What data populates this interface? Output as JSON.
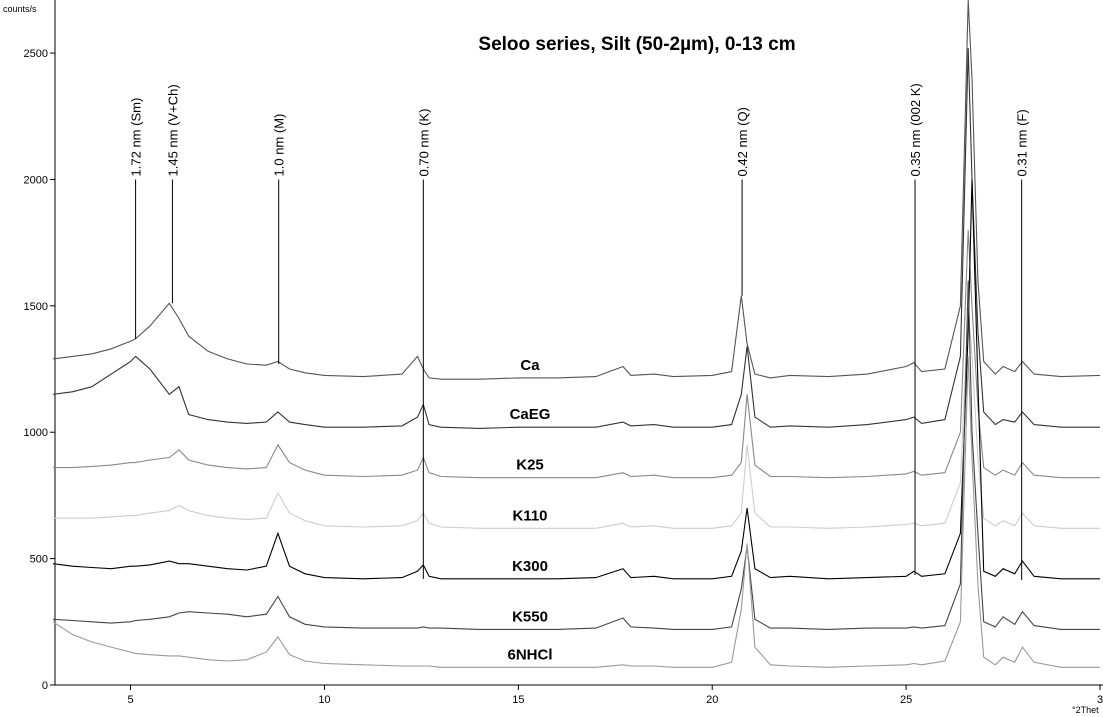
{
  "chart_data": {
    "type": "line",
    "title": "Seloo series, Silt (50-2µm), 0-13 cm",
    "y_label": "counts/s",
    "x_label": "°2Thet",
    "xlim": [
      3,
      30
    ],
    "ylim": [
      0,
      2710
    ],
    "xticks": [
      5,
      10,
      15,
      20,
      25,
      {
        "value": 30,
        "label": "3"
      }
    ],
    "yticks": [
      0,
      500,
      1000,
      1500,
      2000,
      2500
    ],
    "x": [
      3,
      3.5,
      4,
      4.5,
      5,
      5.13,
      5.5,
      6,
      6.25,
      6.5,
      7,
      7.5,
      8,
      8.5,
      8.8,
      9.1,
      9.5,
      10,
      11,
      12,
      12.4,
      12.55,
      12.7,
      13,
      14,
      15,
      16,
      17,
      17.7,
      17.9,
      18.5,
      19,
      20,
      20.5,
      20.75,
      20.9,
      21.1,
      21.5,
      22,
      23,
      24,
      25,
      25.2,
      25.4,
      26,
      26.4,
      26.6,
      26.7,
      26.85,
      27,
      27.3,
      27.5,
      27.8,
      28,
      28.3,
      29,
      30
    ],
    "series": [
      {
        "name": "Ca",
        "color": "#555555",
        "values": [
          1290,
          1300,
          1310,
          1330,
          1360,
          1370,
          1420,
          1510,
          1450,
          1380,
          1320,
          1290,
          1270,
          1265,
          1280,
          1250,
          1235,
          1225,
          1220,
          1230,
          1300,
          1250,
          1215,
          1210,
          1210,
          1215,
          1215,
          1220,
          1260,
          1225,
          1230,
          1220,
          1225,
          1240,
          1540,
          1350,
          1230,
          1215,
          1225,
          1220,
          1230,
          1260,
          1275,
          1240,
          1250,
          1500,
          2710,
          2400,
          1600,
          1280,
          1230,
          1260,
          1240,
          1280,
          1230,
          1220,
          1225
        ]
      },
      {
        "name": "CaEG",
        "color": "#333333",
        "values": [
          1150,
          1160,
          1180,
          1230,
          1280,
          1300,
          1250,
          1150,
          1180,
          1070,
          1050,
          1040,
          1035,
          1040,
          1080,
          1040,
          1030,
          1020,
          1020,
          1025,
          1060,
          1110,
          1030,
          1020,
          1015,
          1020,
          1020,
          1020,
          1040,
          1025,
          1030,
          1020,
          1020,
          1030,
          1150,
          1340,
          1060,
          1020,
          1025,
          1020,
          1030,
          1050,
          1060,
          1035,
          1050,
          1300,
          2520,
          2000,
          1400,
          1080,
          1030,
          1050,
          1040,
          1080,
          1030,
          1020,
          1020
        ]
      },
      {
        "name": "K25",
        "color": "#888888",
        "values": [
          860,
          860,
          865,
          870,
          880,
          880,
          890,
          900,
          930,
          890,
          870,
          860,
          855,
          860,
          950,
          880,
          850,
          830,
          825,
          830,
          850,
          900,
          840,
          825,
          820,
          820,
          820,
          820,
          840,
          825,
          830,
          820,
          820,
          830,
          880,
          1150,
          870,
          825,
          825,
          820,
          825,
          835,
          845,
          830,
          840,
          1000,
          1800,
          1500,
          1100,
          860,
          830,
          850,
          830,
          880,
          830,
          820,
          820
        ]
      },
      {
        "name": "K110",
        "color": "#cccccc",
        "values": [
          660,
          660,
          660,
          665,
          670,
          670,
          680,
          690,
          710,
          690,
          670,
          660,
          655,
          660,
          760,
          680,
          650,
          630,
          625,
          630,
          650,
          680,
          640,
          625,
          620,
          620,
          620,
          620,
          640,
          625,
          630,
          620,
          620,
          630,
          680,
          950,
          680,
          625,
          625,
          620,
          625,
          635,
          640,
          630,
          640,
          800,
          1500,
          1300,
          900,
          660,
          630,
          650,
          630,
          680,
          630,
          620,
          620
        ]
      },
      {
        "name": "K300",
        "color": "#000000",
        "values": [
          480,
          470,
          465,
          460,
          470,
          470,
          475,
          490,
          480,
          480,
          470,
          460,
          455,
          470,
          600,
          470,
          440,
          425,
          420,
          425,
          450,
          475,
          430,
          420,
          420,
          420,
          420,
          425,
          460,
          425,
          430,
          420,
          420,
          430,
          530,
          700,
          460,
          425,
          430,
          420,
          425,
          430,
          450,
          430,
          440,
          600,
          1400,
          2000,
          1200,
          450,
          430,
          460,
          440,
          490,
          430,
          420,
          420
        ]
      },
      {
        "name": "K550",
        "color": "#444444",
        "values": [
          260,
          255,
          250,
          245,
          250,
          255,
          260,
          270,
          285,
          290,
          285,
          280,
          270,
          280,
          350,
          270,
          240,
          230,
          225,
          225,
          225,
          230,
          225,
          225,
          220,
          220,
          220,
          225,
          265,
          230,
          225,
          220,
          220,
          230,
          380,
          550,
          260,
          225,
          225,
          220,
          225,
          225,
          230,
          225,
          235,
          400,
          1600,
          1000,
          600,
          250,
          230,
          270,
          240,
          290,
          235,
          220,
          220
        ]
      },
      {
        "name": "6NHCl",
        "color": "#999999",
        "values": [
          250,
          200,
          170,
          150,
          130,
          125,
          120,
          115,
          115,
          110,
          100,
          95,
          100,
          130,
          190,
          120,
          95,
          85,
          80,
          75,
          75,
          75,
          75,
          70,
          70,
          70,
          70,
          70,
          80,
          75,
          75,
          70,
          70,
          90,
          300,
          560,
          150,
          80,
          75,
          70,
          75,
          80,
          85,
          80,
          95,
          250,
          1300,
          900,
          400,
          110,
          80,
          110,
          90,
          150,
          90,
          70,
          70
        ]
      }
    ],
    "annotations": [
      {
        "label": "1.72 nm (Sm)",
        "x": 5.13,
        "y_top": 2000,
        "y_bottom": 1370
      },
      {
        "label": "1.45 nm (V+Ch)",
        "x": 6.08,
        "y_top": 2000,
        "y_bottom": 1510
      },
      {
        "label": "1.0 nm (M)",
        "x": 8.82,
        "y_top": 2000,
        "y_bottom": 1270
      },
      {
        "label": "0.70 nm (K)",
        "x": 12.55,
        "y_top": 2000,
        "y_bottom": 420
      },
      {
        "label": "0.42 nm (Q)",
        "x": 20.77,
        "y_top": 2000,
        "y_bottom": 1540
      },
      {
        "label": "0.35 nm (002 K)",
        "x": 25.23,
        "y_top": 2000,
        "y_bottom": 435
      },
      {
        "label": "0.31 nm (F)",
        "x": 27.98,
        "y_top": 2000,
        "y_bottom": 415
      }
    ]
  }
}
